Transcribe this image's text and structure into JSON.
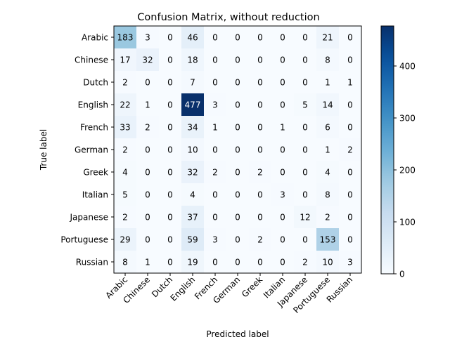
{
  "chart_data": {
    "type": "heatmap",
    "title": "Confusion Matrix, without reduction",
    "xlabel": "Predicted label",
    "ylabel": "True label",
    "x_categories": [
      "Arabic",
      "Chinese",
      "Dutch",
      "English",
      "French",
      "German",
      "Greek",
      "Italian",
      "Japanese",
      "Portuguese",
      "Russian"
    ],
    "y_categories": [
      "Arabic",
      "Chinese",
      "Dutch",
      "English",
      "French",
      "German",
      "Greek",
      "Italian",
      "Japanese",
      "Portuguese",
      "Russian"
    ],
    "values": [
      [
        183,
        3,
        0,
        46,
        0,
        0,
        0,
        0,
        0,
        21,
        0
      ],
      [
        17,
        32,
        0,
        18,
        0,
        0,
        0,
        0,
        0,
        8,
        0
      ],
      [
        2,
        0,
        0,
        7,
        0,
        0,
        0,
        0,
        0,
        1,
        1
      ],
      [
        22,
        1,
        0,
        477,
        3,
        0,
        0,
        0,
        5,
        14,
        0
      ],
      [
        33,
        2,
        0,
        34,
        1,
        0,
        0,
        1,
        0,
        6,
        0
      ],
      [
        2,
        0,
        0,
        10,
        0,
        0,
        0,
        0,
        0,
        1,
        2
      ],
      [
        4,
        0,
        0,
        32,
        2,
        0,
        2,
        0,
        0,
        4,
        0
      ],
      [
        5,
        0,
        0,
        4,
        0,
        0,
        0,
        3,
        0,
        8,
        0
      ],
      [
        2,
        0,
        0,
        37,
        0,
        0,
        0,
        0,
        12,
        2,
        0
      ],
      [
        29,
        0,
        0,
        59,
        3,
        0,
        2,
        0,
        0,
        153,
        0
      ],
      [
        8,
        1,
        0,
        19,
        0,
        0,
        0,
        0,
        2,
        10,
        3
      ]
    ],
    "colormap": "Blues",
    "vmin": 0,
    "vmax": 477,
    "colorbar_ticks": [
      0,
      100,
      200,
      300,
      400
    ],
    "grid": false
  }
}
